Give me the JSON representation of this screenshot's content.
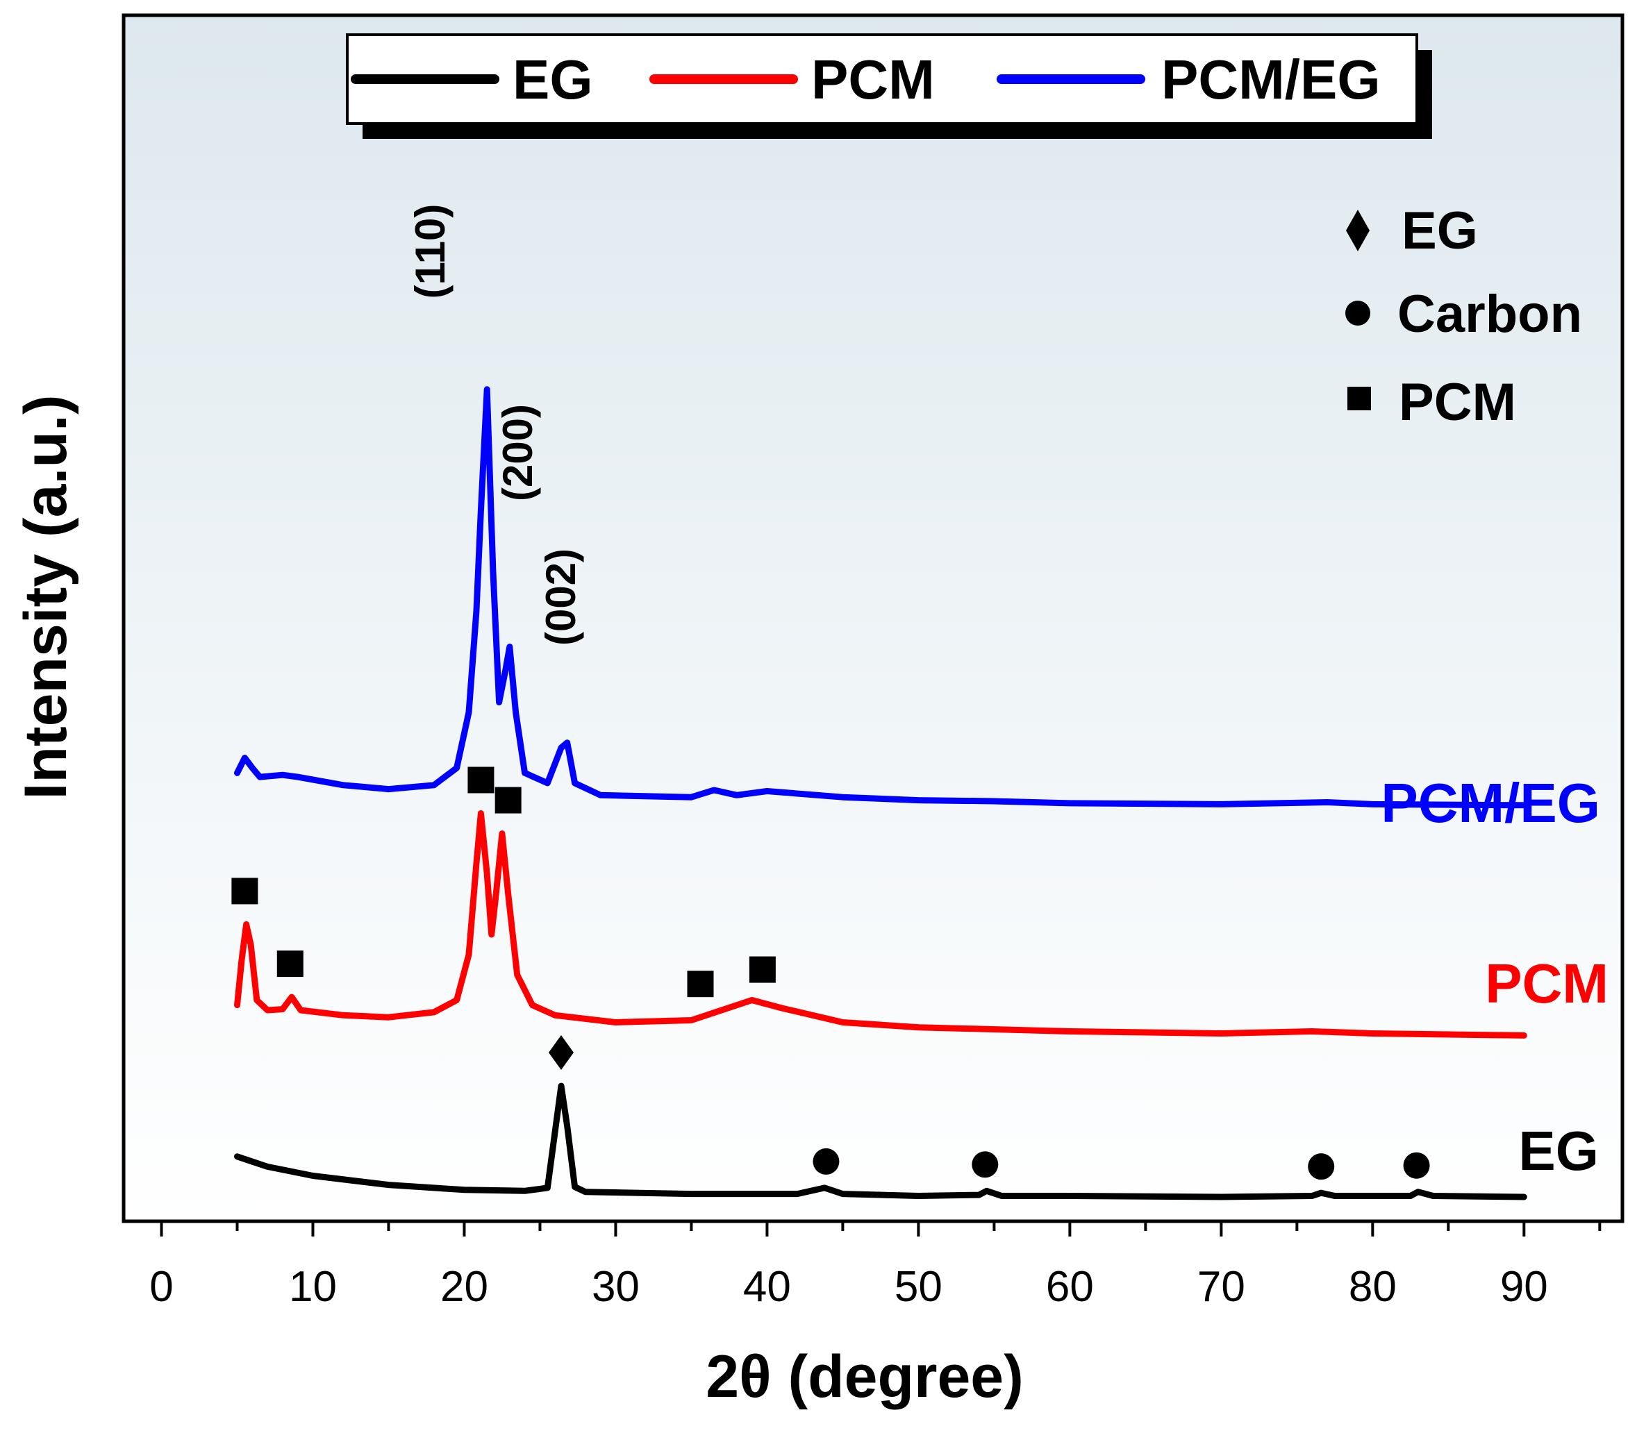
{
  "chart_data": {
    "type": "line",
    "xlabel": "2θ (degree)",
    "ylabel": "Intensity (a.u.)",
    "xlim": [
      -2.5,
      96.5
    ],
    "xticks": [
      0,
      10,
      20,
      30,
      40,
      50,
      60,
      70,
      80,
      90
    ],
    "xtick_labels": [
      "0",
      "10",
      "20",
      "30",
      "40",
      "50",
      "60",
      "70",
      "80",
      "90"
    ],
    "ylim": [
      0,
      100
    ],
    "y_units": "arbitrary (traces vertically offset)",
    "background": {
      "top": "#dde8ee",
      "bottom": "#ffffff"
    },
    "legend": {
      "position": "top-center",
      "entries": [
        {
          "label": "EG",
          "color": "#000000"
        },
        {
          "label": "PCM",
          "color": "#ff0000"
        },
        {
          "label": "PCM/EG",
          "color": "#0000ff"
        }
      ]
    },
    "series": [
      {
        "name": "EG",
        "color": "#000000",
        "end_label": "EG",
        "points": [
          [
            5,
            4.0
          ],
          [
            7,
            3.0
          ],
          [
            10,
            2.1
          ],
          [
            15,
            1.2
          ],
          [
            20,
            0.7
          ],
          [
            24,
            0.6
          ],
          [
            25.5,
            0.9
          ],
          [
            26,
            6.5
          ],
          [
            26.4,
            11.0
          ],
          [
            26.8,
            7.0
          ],
          [
            27.3,
            1.0
          ],
          [
            28,
            0.5
          ],
          [
            35,
            0.3
          ],
          [
            42,
            0.3
          ],
          [
            43.8,
            0.9
          ],
          [
            45,
            0.3
          ],
          [
            50,
            0.1
          ],
          [
            54,
            0.2
          ],
          [
            54.5,
            0.6
          ],
          [
            55.5,
            0.1
          ],
          [
            60,
            0.1
          ],
          [
            70,
            0.0
          ],
          [
            76,
            0.1
          ],
          [
            76.6,
            0.4
          ],
          [
            77.5,
            0.1
          ],
          [
            82.5,
            0.1
          ],
          [
            83,
            0.5
          ],
          [
            84,
            0.1
          ],
          [
            90,
            0.0
          ]
        ]
      },
      {
        "name": "PCM",
        "color": "#ff0000",
        "end_label": "PCM",
        "points": [
          [
            5,
            19.0
          ],
          [
            5.3,
            23.5
          ],
          [
            5.6,
            27.0
          ],
          [
            5.9,
            25.0
          ],
          [
            6.3,
            19.5
          ],
          [
            7,
            18.5
          ],
          [
            8,
            18.6
          ],
          [
            8.6,
            19.8
          ],
          [
            9.2,
            18.5
          ],
          [
            12,
            18.0
          ],
          [
            15,
            17.8
          ],
          [
            18,
            18.3
          ],
          [
            19.5,
            19.5
          ],
          [
            20.3,
            24.0
          ],
          [
            20.8,
            33.0
          ],
          [
            21.1,
            38.0
          ],
          [
            21.5,
            32.0
          ],
          [
            21.8,
            26.0
          ],
          [
            22.1,
            30.0
          ],
          [
            22.5,
            36.0
          ],
          [
            22.9,
            30.0
          ],
          [
            23.5,
            22.0
          ],
          [
            24.5,
            19.0
          ],
          [
            26,
            18.0
          ],
          [
            30,
            17.3
          ],
          [
            35,
            17.5
          ],
          [
            37,
            18.5
          ],
          [
            39,
            19.5
          ],
          [
            41,
            18.7
          ],
          [
            45,
            17.3
          ],
          [
            50,
            16.8
          ],
          [
            60,
            16.4
          ],
          [
            70,
            16.2
          ],
          [
            76,
            16.4
          ],
          [
            80,
            16.2
          ],
          [
            90,
            16.0
          ]
        ]
      },
      {
        "name": "PCM/EG",
        "color": "#0000ff",
        "end_label": "PCM/EG",
        "points": [
          [
            5,
            42.0
          ],
          [
            5.5,
            43.5
          ],
          [
            6,
            42.5
          ],
          [
            6.5,
            41.6
          ],
          [
            8,
            41.8
          ],
          [
            9,
            41.6
          ],
          [
            12,
            40.8
          ],
          [
            15,
            40.4
          ],
          [
            18,
            40.8
          ],
          [
            19.5,
            42.5
          ],
          [
            20.3,
            48.0
          ],
          [
            20.8,
            58.0
          ],
          [
            21.1,
            68.0
          ],
          [
            21.5,
            80.0
          ],
          [
            21.9,
            62.0
          ],
          [
            22.3,
            49.0
          ],
          [
            22.7,
            52.0
          ],
          [
            23.0,
            54.5
          ],
          [
            23.4,
            48.0
          ],
          [
            24,
            42.0
          ],
          [
            25.5,
            41.0
          ],
          [
            26.4,
            44.5
          ],
          [
            26.8,
            45.0
          ],
          [
            27.3,
            41.0
          ],
          [
            29,
            39.8
          ],
          [
            35,
            39.6
          ],
          [
            36.5,
            40.3
          ],
          [
            38,
            39.8
          ],
          [
            40,
            40.2
          ],
          [
            45,
            39.6
          ],
          [
            50,
            39.3
          ],
          [
            55,
            39.2
          ],
          [
            60,
            39.0
          ],
          [
            70,
            38.9
          ],
          [
            77,
            39.1
          ],
          [
            80,
            38.9
          ],
          [
            90,
            38.8
          ]
        ]
      }
    ],
    "phase_legend": {
      "position": "top-right",
      "entries": [
        {
          "symbol": "diamond",
          "label": "EG"
        },
        {
          "symbol": "circle",
          "label": "Carbon"
        },
        {
          "symbol": "square",
          "label": "PCM"
        }
      ]
    },
    "markers": [
      {
        "symbol": "diamond",
        "series": "EG",
        "x": 26.4
      },
      {
        "symbol": "circle",
        "series": "EG",
        "x": 43.9
      },
      {
        "symbol": "circle",
        "series": "EG",
        "x": 54.4
      },
      {
        "symbol": "circle",
        "series": "EG",
        "x": 76.6
      },
      {
        "symbol": "circle",
        "series": "EG",
        "x": 82.9
      },
      {
        "symbol": "square",
        "series": "PCM",
        "x": 5.5
      },
      {
        "symbol": "square",
        "series": "PCM",
        "x": 8.5
      },
      {
        "symbol": "square",
        "series": "PCM",
        "x": 21.1
      },
      {
        "symbol": "square",
        "series": "PCM",
        "x": 22.9
      },
      {
        "symbol": "square",
        "series": "PCM",
        "x": 35.6
      },
      {
        "symbol": "square",
        "series": "PCM",
        "x": 39.7
      }
    ],
    "peak_labels": [
      {
        "text": "(110)",
        "x": 21.5,
        "series": "PCM/EG"
      },
      {
        "text": "(200)",
        "x": 23.0,
        "series": "PCM/EG"
      },
      {
        "text": "(002)",
        "x": 26.8,
        "series": "PCM/EG"
      }
    ]
  }
}
